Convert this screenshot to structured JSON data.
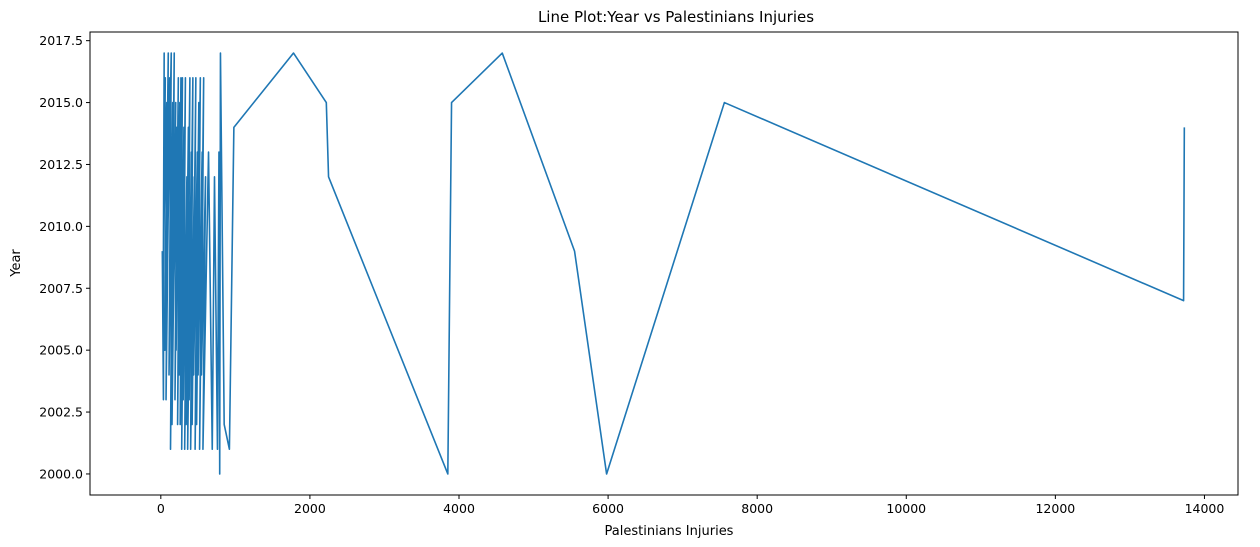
{
  "chart_data": {
    "type": "line",
    "title": "Line Plot:Year vs Palestinians Injuries",
    "xlabel": "Palestinians Injuries",
    "ylabel": "Year",
    "xlim": [
      -950,
      14450
    ],
    "ylim": [
      1999.15,
      2017.85
    ],
    "xticks": [
      0,
      2000,
      4000,
      6000,
      8000,
      10000,
      12000,
      14000
    ],
    "xtick_labels": [
      "0",
      "2000",
      "4000",
      "6000",
      "8000",
      "10000",
      "12000",
      "14000"
    ],
    "yticks": [
      2000.0,
      2002.5,
      2005.0,
      2007.5,
      2010.0,
      2012.5,
      2015.0,
      2017.5
    ],
    "ytick_labels": [
      "2000.0",
      "2002.5",
      "2005.0",
      "2007.5",
      "2010.0",
      "2012.5",
      "2015.0",
      "2017.5"
    ],
    "grid": false,
    "line_color": "#1f77b4",
    "series": [
      {
        "x": [
          20,
          35,
          45,
          30,
          60,
          40,
          80,
          55,
          100,
          70,
          120,
          90,
          140,
          110,
          160,
          130,
          180,
          150,
          200,
          165,
          215,
          190,
          235,
          205,
          255,
          225,
          270,
          245,
          290,
          260,
          310,
          280,
          330,
          300,
          350,
          320,
          370,
          340,
          390,
          360,
          410,
          380,
          430,
          400,
          450,
          420,
          470,
          440,
          490,
          460,
          510,
          480,
          530,
          500,
          555,
          520,
          575,
          545,
          600,
          565,
          640,
          690,
          720,
          760,
          780,
          790,
          800,
          850,
          920,
          980,
          1780,
          2220,
          2250,
          3850,
          3900,
          4580,
          5550,
          5980,
          7560,
          13720,
          13730
        ],
        "y": [
          2009,
          2003,
          2017,
          2005,
          2016,
          2010,
          2015,
          2005,
          2017,
          2003,
          2016,
          2009,
          2017,
          2004,
          2015,
          2001,
          2017,
          2002,
          2015,
          2006,
          2014,
          2003,
          2016,
          2005,
          2015,
          2002,
          2016,
          2004,
          2016,
          2002,
          2014,
          2001,
          2016,
          2003,
          2012,
          2001,
          2014,
          2002,
          2016,
          2001,
          2013,
          2003,
          2016,
          2001,
          2012,
          2002,
          2016,
          2004,
          2013,
          2001,
          2015,
          2002,
          2016,
          2004,
          2013,
          2001,
          2016,
          2004,
          2012,
          2001,
          2013,
          2001,
          2012,
          2001,
          2013,
          2000,
          2017,
          2002,
          2001,
          2014,
          2017,
          2015,
          2012,
          2000,
          2015,
          2017,
          2009,
          2000,
          2015,
          2007,
          2014
        ]
      }
    ]
  }
}
